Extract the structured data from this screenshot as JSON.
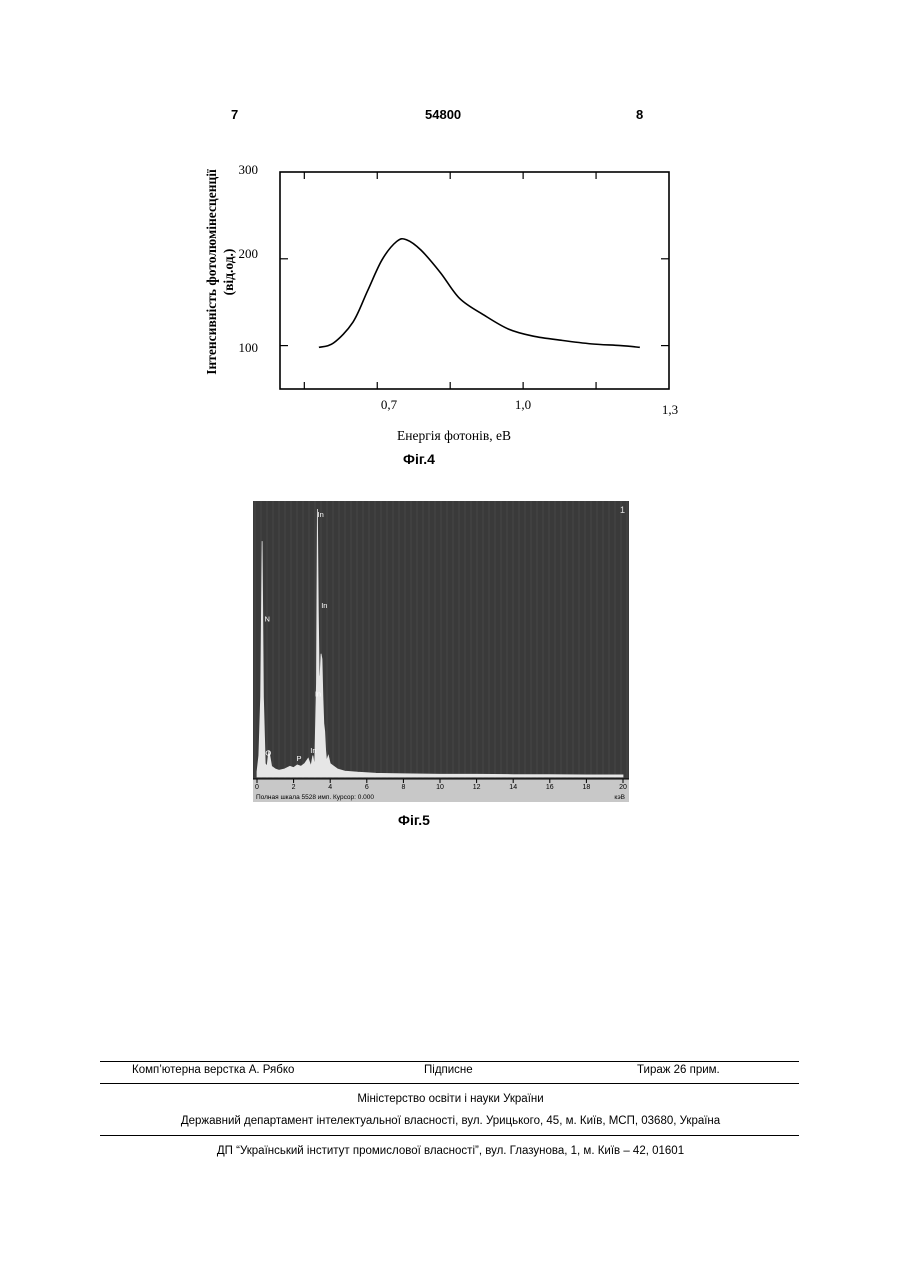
{
  "header": {
    "left": "7",
    "center": "54800",
    "right": "8"
  },
  "figures": {
    "fig4_caption": "Фіг.4",
    "fig5_caption": "Фіг.5"
  },
  "chart_data": [
    {
      "type": "line",
      "title": "",
      "xlabel": "Енергія фотонів, еВ",
      "ylabel_line1": "Інтенсивність фотолюмінесценції",
      "ylabel_line2": "(від.од.)",
      "x_ticks": [
        "0,7",
        "1,0",
        "1,3"
      ],
      "y_ticks": [
        "300",
        "200",
        "100"
      ],
      "xlim": [
        0.5,
        1.3
      ],
      "ylim": [
        50,
        300
      ],
      "grid": false,
      "series": [
        {
          "x": [
            0.58,
            0.61,
            0.65,
            0.68,
            0.71,
            0.74,
            0.76,
            0.79,
            0.83,
            0.87,
            0.92,
            0.97,
            1.02,
            1.08,
            1.14,
            1.2,
            1.24
          ],
          "y": [
            98,
            103,
            127,
            163,
            199,
            220,
            222,
            210,
            184,
            154,
            135,
            119,
            111,
            106,
            102,
            100,
            98
          ]
        }
      ]
    },
    {
      "type": "line",
      "title": "",
      "xlabel": "кэВ",
      "x_ticks": [
        "0",
        "2",
        "4",
        "6",
        "8",
        "10",
        "12",
        "14",
        "16",
        "18",
        "20"
      ],
      "xlim": [
        0,
        20
      ],
      "ylim": [
        0,
        1
      ],
      "corner_label": "1",
      "status_text": "Полная шкала 5528 имп. Курсор: 0.000",
      "background": "#3a3a3a",
      "spectrum_color": "#e6e6e6",
      "series": [
        {
          "x": [
            0.0,
            0.1,
            0.2,
            0.28,
            0.35,
            0.45,
            0.55,
            0.65,
            0.8,
            1.0,
            1.2,
            1.5,
            1.8,
            2.0,
            2.2,
            2.4,
            2.6,
            2.8,
            2.95,
            3.05,
            3.15,
            3.25,
            3.3,
            3.35,
            3.4,
            3.45,
            3.5,
            3.55,
            3.6,
            3.65,
            3.7,
            3.75,
            3.8,
            3.9,
            4.0,
            4.1,
            4.2,
            4.4,
            4.8,
            5.5,
            6.5,
            8.0,
            10.0,
            12.0,
            14.0,
            16.0,
            18.0,
            20.0
          ],
          "y": [
            0.02,
            0.08,
            0.3,
            0.88,
            0.3,
            0.05,
            0.04,
            0.1,
            0.04,
            0.03,
            0.025,
            0.03,
            0.04,
            0.035,
            0.045,
            0.04,
            0.05,
            0.07,
            0.04,
            0.08,
            0.04,
            0.35,
            1.0,
            0.62,
            0.36,
            0.38,
            0.46,
            0.44,
            0.3,
            0.2,
            0.17,
            0.1,
            0.06,
            0.08,
            0.05,
            0.045,
            0.04,
            0.03,
            0.022,
            0.018,
            0.014,
            0.012,
            0.01,
            0.01,
            0.009,
            0.009,
            0.008,
            0.008
          ]
        }
      ],
      "peak_labels": [
        {
          "text": "N",
          "x": 0.3,
          "y": 0.58
        },
        {
          "text": "O",
          "x": 0.35,
          "y": 0.08
        },
        {
          "text": "P",
          "x": 2.05,
          "y": 0.06
        },
        {
          "text": "In",
          "x": 2.8,
          "y": 0.09
        },
        {
          "text": "In",
          "x": 3.05,
          "y": 0.3
        },
        {
          "text": "In",
          "x": 3.4,
          "y": 0.63
        },
        {
          "text": "In",
          "x": 3.2,
          "y": 0.97
        }
      ]
    }
  ],
  "footer": {
    "layout_credit": "Комп’ютерна верстка А. Рябко",
    "signed": "Підписне",
    "print_run": "Тираж 26 прим.",
    "ministry": "Міністерство освіти і науки України",
    "department": "Державний департамент інтелектуальної власності, вул. Урицького, 45, м. Київ, МСП, 03680, Україна",
    "institute": "ДП “Український інститут промислової власності”, вул. Глазунова, 1, м. Київ – 42, 01601"
  }
}
